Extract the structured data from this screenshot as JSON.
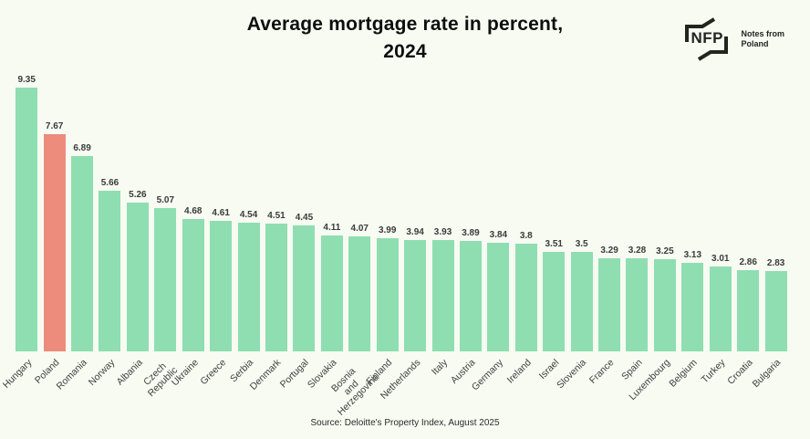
{
  "header": {
    "title_line1": "Average mortgage rate in percent,",
    "title_line2": "2024",
    "logo": {
      "abbr": "NFP",
      "name": "Notes from\nPoland"
    }
  },
  "footer": {
    "source": "Source: Deloitte's Property Index, August 2025"
  },
  "colors": {
    "background": "#F7FBF2",
    "bar_default": "#8EDEB2",
    "bar_highlight": "#ED8B7C",
    "text_dark": "#0e0e0e",
    "label_gray": "#3f3f3f",
    "logo_dark": "#20251e"
  },
  "chart_data": {
    "type": "bar",
    "title": "Average mortgage rate in percent, 2024",
    "xlabel": "",
    "ylabel": "",
    "ylim": [
      0,
      9.35
    ],
    "legend": "none",
    "grid": false,
    "axis_lines": "none",
    "value_labels_shown": true,
    "highlighted_category": "Poland",
    "categories": [
      "Hungary",
      "Poland",
      "Romania",
      "Norway",
      "Albania",
      "Czech Republic",
      "Ukraine",
      "Greece",
      "Serbia",
      "Denmark",
      "Portugal",
      "Slovakia",
      "Bosnia and Herzegovina",
      "Finland",
      "Netherlands",
      "Italy",
      "Austria",
      "Germany",
      "Ireland",
      "Israel",
      "Slovenia",
      "France",
      "Spain",
      "Luxembourg",
      "Belgium",
      "Turkey",
      "Croatia",
      "Bulgaria"
    ],
    "display_labels": [
      "Hungary",
      "Poland",
      "Romania",
      "Norway",
      "Albania",
      "Czech\nRepublic",
      "Ukraine",
      "Greece",
      "Serbia",
      "Denmark",
      "Portugal",
      "Slovakia",
      "Bosnia\nand\nHerzegovina",
      "Finland",
      "Netherlands",
      "Italy",
      "Austria",
      "Germany",
      "Ireland",
      "Israel",
      "Slovenia",
      "France",
      "Spain",
      "Luxembourg",
      "Belgium",
      "Turkey",
      "Croatia",
      "Bulgaria"
    ],
    "values": [
      9.35,
      7.67,
      6.89,
      5.66,
      5.26,
      5.07,
      4.68,
      4.61,
      4.54,
      4.51,
      4.45,
      4.11,
      4.07,
      3.99,
      3.94,
      3.93,
      3.89,
      3.84,
      3.8,
      3.51,
      3.5,
      3.29,
      3.28,
      3.25,
      3.13,
      3.01,
      2.86,
      2.83
    ],
    "source": "Source: Deloitte's Property Index, August 2025"
  }
}
